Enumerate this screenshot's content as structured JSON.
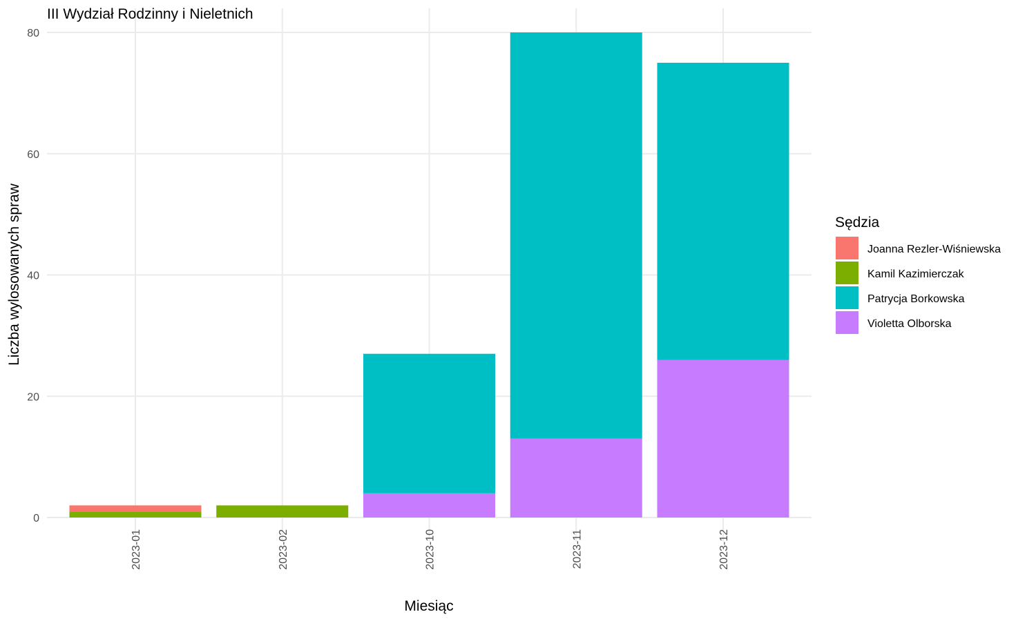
{
  "chart_data": {
    "type": "bar",
    "stacked": true,
    "title": "III Wydział Rodzinny i Nieletnich",
    "xlabel": "Miesiąc",
    "ylabel": "Liczba wylosowanych spraw",
    "categories": [
      "2023-01",
      "2023-02",
      "2023-10",
      "2023-11",
      "2023-12"
    ],
    "ylim": [
      0,
      80
    ],
    "yticks": [
      0,
      20,
      40,
      60,
      80
    ],
    "grid": true,
    "legend": {
      "title": "Sędzia",
      "placement": "right"
    },
    "series": [
      {
        "name": "Joanna Rezler-Wiśniewska",
        "color": "#F8766D",
        "values": [
          1,
          0,
          0,
          0,
          0
        ]
      },
      {
        "name": "Kamil Kazimierczak",
        "color": "#7CAE00",
        "values": [
          1,
          2,
          0,
          0,
          0
        ]
      },
      {
        "name": "Patrycja Borkowska",
        "color": "#00BFC4",
        "values": [
          0,
          0,
          23,
          67,
          49
        ]
      },
      {
        "name": "Violetta Olborska",
        "color": "#C77CFF",
        "values": [
          0,
          0,
          4,
          13,
          26
        ]
      }
    ]
  }
}
